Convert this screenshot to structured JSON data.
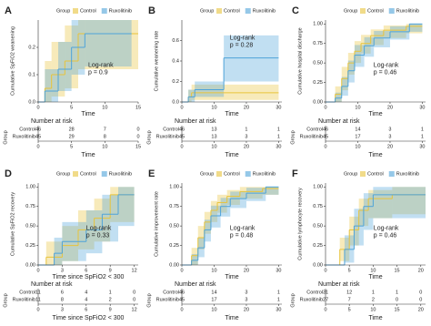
{
  "chart_data": [
    {
      "type": "step",
      "label": "A",
      "legend_title": "Group",
      "ylabel": "Cumulative SpFiO2 weanening",
      "xlabel": "Time",
      "annotation": [
        "Log-rank",
        "p = 0.9"
      ],
      "xlim": [
        0,
        15
      ],
      "xticks": [
        0,
        5,
        10,
        15
      ],
      "ylim": [
        0,
        0.3
      ],
      "yticks": [
        {
          "value": 0,
          "label": "0.0"
        },
        {
          "value": 0.1,
          "label": "0.1"
        },
        {
          "value": 0.2,
          "label": "0.2"
        }
      ],
      "series": [
        {
          "name": "Control",
          "color": "#e8c33a",
          "x": [
            0,
            1,
            2,
            4,
            6,
            15
          ],
          "values": [
            0,
            0.05,
            0.1,
            0.15,
            0.25,
            0.25
          ],
          "ci_lower": [
            0,
            0,
            0.02,
            0.05,
            0.12,
            0.12
          ],
          "ci_upper": [
            0,
            0.15,
            0.22,
            0.28,
            0.3,
            0.3
          ]
        },
        {
          "name": "Ruxolitinib",
          "color": "#4ea3d9",
          "x": [
            0,
            1,
            3,
            5,
            7,
            14
          ],
          "values": [
            0,
            0.04,
            0.12,
            0.2,
            0.25,
            0.25
          ],
          "ci_lower": [
            0,
            0,
            0.04,
            0.1,
            0.13,
            0.13
          ],
          "ci_upper": [
            0,
            0.12,
            0.22,
            0.3,
            0.3,
            0.3
          ]
        }
      ],
      "risk_table": {
        "title": "Number at risk",
        "row_title": "Group",
        "rows": [
          {
            "name": "Control",
            "values": [
              46,
              28,
              7,
              0
            ]
          },
          {
            "name": "Ruxolitinib",
            "values": [
              45,
              29,
              8,
              0
            ]
          }
        ]
      }
    },
    {
      "type": "step",
      "label": "B",
      "legend_title": "Group",
      "ylabel": "Cumulative weanening rate",
      "xlabel": "Time",
      "annotation": [
        "Log-rank",
        "p = 0.28"
      ],
      "xlim": [
        0,
        31
      ],
      "xticks": [
        0,
        10,
        20,
        30
      ],
      "ylim": [
        0,
        0.8
      ],
      "yticks": [
        {
          "value": 0,
          "label": "0.0"
        },
        {
          "value": 0.2,
          "label": "0.2"
        },
        {
          "value": 0.4,
          "label": "0.4"
        },
        {
          "value": 0.6,
          "label": "0.6"
        }
      ],
      "series": [
        {
          "name": "Control",
          "color": "#e8c33a",
          "x": [
            0,
            2,
            3,
            30
          ],
          "values": [
            0,
            0.05,
            0.09,
            0.09
          ],
          "ci_lower": [
            0,
            0,
            0.02,
            0.02
          ],
          "ci_upper": [
            0,
            0.12,
            0.17,
            0.17
          ]
        },
        {
          "name": "Ruxolitinib",
          "color": "#4ea3d9",
          "x": [
            0,
            2,
            4,
            13,
            30
          ],
          "values": [
            0,
            0.05,
            0.12,
            0.43,
            0.43
          ],
          "ci_lower": [
            0,
            0,
            0.05,
            0.2,
            0.2
          ],
          "ci_upper": [
            0,
            0.12,
            0.2,
            0.65,
            0.65
          ]
        }
      ],
      "risk_table": {
        "title": "Number at risk",
        "row_title": "Group",
        "rows": [
          {
            "name": "Control",
            "values": [
              46,
              13,
              1,
              1
            ]
          },
          {
            "name": "Ruxolitinib",
            "values": [
              45,
              13,
              3,
              1
            ]
          }
        ]
      }
    },
    {
      "type": "step",
      "label": "C",
      "legend_title": "Group",
      "ylabel": "Cumulative hospital discharge",
      "xlabel": "Time",
      "annotation": [
        "Log-rank",
        "p = 0.46"
      ],
      "xlim": [
        0,
        31
      ],
      "xticks": [
        0,
        10,
        20,
        30
      ],
      "ylim": [
        0,
        1.05
      ],
      "yticks": [
        {
          "value": 0,
          "label": "0.00"
        },
        {
          "value": 0.25,
          "label": "0.25"
        },
        {
          "value": 0.5,
          "label": "0.50"
        },
        {
          "value": 0.75,
          "label": "0.75"
        },
        {
          "value": 1,
          "label": "1.00"
        }
      ],
      "series": [
        {
          "name": "Control",
          "color": "#e8c33a",
          "x": [
            0,
            3,
            5,
            7,
            9,
            11,
            14,
            18,
            25,
            30
          ],
          "values": [
            0,
            0.1,
            0.3,
            0.5,
            0.65,
            0.75,
            0.85,
            0.92,
            0.97,
            0.97
          ],
          "ci_lower": [
            0,
            0,
            0.15,
            0.35,
            0.5,
            0.62,
            0.73,
            0.82,
            0.88,
            0.88
          ],
          "ci_upper": [
            0,
            0.2,
            0.45,
            0.63,
            0.78,
            0.86,
            0.93,
            0.98,
            1.0,
            1.0
          ]
        },
        {
          "name": "Ruxolitinib",
          "color": "#4ea3d9",
          "x": [
            0,
            3,
            5,
            7,
            9,
            12,
            15,
            20,
            26,
            30
          ],
          "values": [
            0,
            0.05,
            0.2,
            0.4,
            0.6,
            0.72,
            0.82,
            0.9,
            1.0,
            1.0
          ],
          "ci_lower": [
            0,
            0,
            0.08,
            0.25,
            0.45,
            0.58,
            0.7,
            0.8,
            0.9,
            0.9
          ],
          "ci_upper": [
            0,
            0.12,
            0.32,
            0.53,
            0.73,
            0.83,
            0.91,
            0.97,
            1.0,
            1.0
          ]
        }
      ],
      "risk_table": {
        "title": "Number at risk",
        "row_title": "Group",
        "rows": [
          {
            "name": "Control",
            "values": [
              46,
              14,
              3,
              1
            ]
          },
          {
            "name": "Ruxolitinib",
            "values": [
              45,
              17,
              3,
              1
            ]
          }
        ]
      }
    },
    {
      "type": "step",
      "label": "D",
      "legend_title": "Group",
      "ylabel": "Cumulative SpFiO2 recovery",
      "xlabel": "Time since SpFiO2 < 300",
      "annotation": [
        "Log-rank",
        "p = 0.33"
      ],
      "xlim": [
        0,
        12.5
      ],
      "xticks": [
        0,
        3,
        6,
        9,
        12
      ],
      "ylim": [
        0,
        1.05
      ],
      "yticks": [
        {
          "value": 0,
          "label": "0.00"
        },
        {
          "value": 0.25,
          "label": "0.25"
        },
        {
          "value": 0.5,
          "label": "0.50"
        },
        {
          "value": 0.75,
          "label": "0.75"
        },
        {
          "value": 1,
          "label": "1.00"
        }
      ],
      "series": [
        {
          "name": "Control",
          "color": "#e8c33a",
          "x": [
            0,
            1,
            3,
            5,
            7,
            9,
            12
          ],
          "values": [
            0,
            0.1,
            0.25,
            0.45,
            0.6,
            0.9,
            0.9
          ],
          "ci_lower": [
            0,
            0,
            0.05,
            0.2,
            0.3,
            0.55,
            0.55
          ],
          "ci_upper": [
            0,
            0.3,
            0.5,
            0.7,
            0.85,
            1.0,
            1.0
          ]
        },
        {
          "name": "Ruxolitinib",
          "color": "#4ea3d9",
          "x": [
            0,
            2,
            3,
            6,
            8,
            10,
            12
          ],
          "values": [
            0,
            0.15,
            0.3,
            0.45,
            0.65,
            0.9,
            0.9
          ],
          "ci_lower": [
            0,
            0,
            0.05,
            0.15,
            0.3,
            0.5,
            0.5
          ],
          "ci_upper": [
            0,
            0.35,
            0.55,
            0.7,
            0.9,
            1.0,
            1.0
          ]
        }
      ],
      "risk_table": {
        "title": "Number at risk",
        "row_title": "Group",
        "rows": [
          {
            "name": "Control",
            "values": [
              11,
              6,
              4,
              1,
              0
            ]
          },
          {
            "name": "Ruxolitinib",
            "values": [
              11,
              8,
              4,
              2,
              0
            ]
          }
        ]
      }
    },
    {
      "type": "step",
      "label": "E",
      "legend_title": "Group",
      "ylabel": "Cumulative improvement rate",
      "xlabel": "Time",
      "annotation": [
        "Log-rank",
        "p = 0.48"
      ],
      "xlim": [
        0,
        31
      ],
      "xticks": [
        0,
        10,
        20,
        30
      ],
      "ylim": [
        0,
        1.05
      ],
      "yticks": [
        {
          "value": 0,
          "label": "0.00"
        },
        {
          "value": 0.25,
          "label": "0.25"
        },
        {
          "value": 0.5,
          "label": "0.50"
        },
        {
          "value": 0.75,
          "label": "0.75"
        },
        {
          "value": 1,
          "label": "1.00"
        }
      ],
      "series": [
        {
          "name": "Control",
          "color": "#e8c33a",
          "x": [
            0,
            3,
            5,
            7,
            9,
            11,
            14,
            18,
            25,
            30
          ],
          "values": [
            0,
            0.12,
            0.35,
            0.55,
            0.7,
            0.8,
            0.88,
            0.94,
            0.98,
            0.98
          ],
          "ci_lower": [
            0,
            0,
            0.2,
            0.4,
            0.55,
            0.67,
            0.77,
            0.85,
            0.9,
            0.9
          ],
          "ci_upper": [
            0,
            0.22,
            0.5,
            0.68,
            0.82,
            0.9,
            0.96,
            1.0,
            1.0,
            1.0
          ]
        },
        {
          "name": "Ruxolitinib",
          "color": "#4ea3d9",
          "x": [
            0,
            3,
            5,
            7,
            9,
            12,
            15,
            20,
            26,
            30
          ],
          "values": [
            0,
            0.06,
            0.22,
            0.45,
            0.63,
            0.75,
            0.85,
            0.92,
            1.0,
            1.0
          ],
          "ci_lower": [
            0,
            0,
            0.1,
            0.3,
            0.48,
            0.62,
            0.73,
            0.82,
            0.9,
            0.9
          ],
          "ci_upper": [
            0,
            0.14,
            0.35,
            0.58,
            0.76,
            0.86,
            0.94,
            0.99,
            1.0,
            1.0
          ]
        }
      ],
      "risk_table": {
        "title": "Number at risk",
        "row_title": "Group",
        "rows": [
          {
            "name": "Control",
            "values": [
              46,
              14,
              3,
              1
            ]
          },
          {
            "name": "Ruxolitinib",
            "values": [
              45,
              17,
              3,
              1
            ]
          }
        ]
      }
    },
    {
      "type": "step",
      "label": "F",
      "legend_title": "Group",
      "ylabel": "Cumulative lymphocyte recovery",
      "xlabel": "Time",
      "annotation": [
        "Log-rank",
        "p = 0.46"
      ],
      "xlim": [
        0,
        21
      ],
      "xticks": [
        0,
        5,
        10,
        15,
        20
      ],
      "ylim": [
        0,
        1.05
      ],
      "yticks": [
        {
          "value": 0,
          "label": "0.00"
        },
        {
          "value": 0.25,
          "label": "0.25"
        },
        {
          "value": 0.5,
          "label": "0.50"
        },
        {
          "value": 0.75,
          "label": "0.75"
        },
        {
          "value": 1,
          "label": "1.00"
        }
      ],
      "series": [
        {
          "name": "Control",
          "color": "#e8c33a",
          "x": [
            0,
            3,
            5,
            7,
            9,
            14,
            21
          ],
          "values": [
            0,
            0.2,
            0.45,
            0.7,
            0.85,
            0.9,
            0.9
          ],
          "ci_lower": [
            0,
            0.05,
            0.25,
            0.5,
            0.6,
            0.65,
            0.65
          ],
          "ci_upper": [
            0,
            0.35,
            0.62,
            0.85,
            0.96,
            1.0,
            1.0
          ]
        },
        {
          "name": "Ruxolitinib",
          "color": "#4ea3d9",
          "x": [
            0,
            4,
            6,
            8,
            10,
            21
          ],
          "values": [
            0,
            0.2,
            0.5,
            0.75,
            0.9,
            0.9
          ],
          "ci_lower": [
            0,
            0.03,
            0.25,
            0.45,
            0.6,
            0.6
          ],
          "ci_upper": [
            0,
            0.38,
            0.72,
            0.92,
            1.0,
            1.0
          ]
        }
      ],
      "risk_table": {
        "title": "Number at risk",
        "row_title": "Group",
        "rows": [
          {
            "name": "Control",
            "values": [
              31,
              12,
              1,
              1,
              0
            ]
          },
          {
            "name": "Ruxolitinib",
            "values": [
              27,
              7,
              2,
              0,
              0
            ]
          }
        ]
      }
    }
  ]
}
